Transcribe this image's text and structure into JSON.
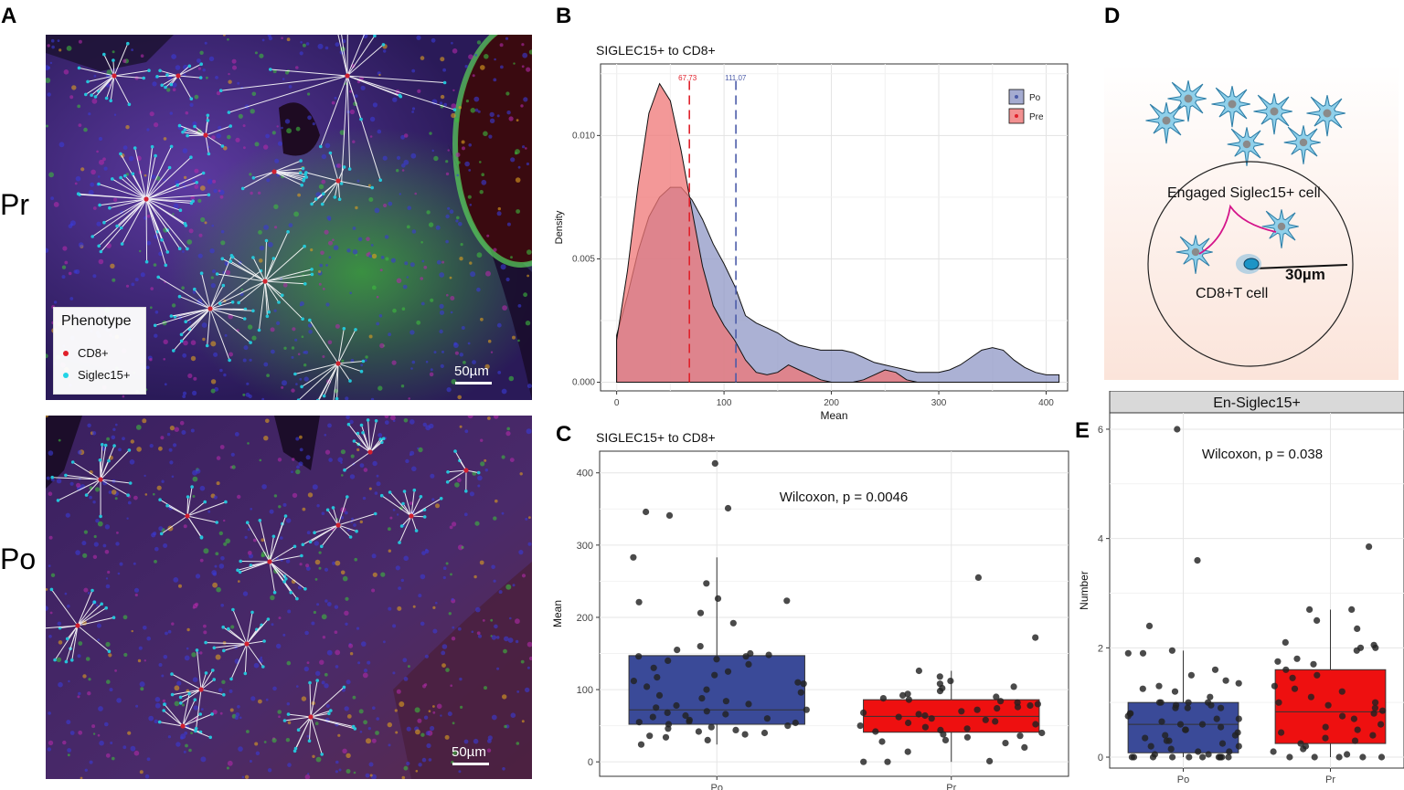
{
  "panels": {
    "A": "A",
    "B": "B",
    "C": "C",
    "D": "D",
    "E": "E"
  },
  "micrographs": {
    "row_labels": [
      "Pr",
      "Po"
    ],
    "legend_title": "Phenotype",
    "legend_items": [
      {
        "label": "CD8+",
        "color": "#e0202a"
      },
      {
        "label": "Siglec15+",
        "color": "#22d4e6"
      }
    ],
    "scale_label": "50µm"
  },
  "diagram": {
    "engaged_label": "Engaged Siglec15+ cell",
    "cd8_label": "CD8+T cell",
    "radius_label": "30µm"
  },
  "chart_data": [
    {
      "id": "B",
      "type": "area",
      "title": "SIGLEC15+ to CD8+",
      "xlabel": "Mean",
      "ylabel": "Density",
      "xlim": [
        -15,
        420
      ],
      "ylim": [
        -0.00035,
        0.0129
      ],
      "xticks": [
        0,
        100,
        200,
        300,
        400
      ],
      "yticks": [
        0.0,
        0.005,
        0.01
      ],
      "ytick_labels": [
        "0.000",
        "0.005",
        "0.010"
      ],
      "legend": [
        "Po",
        "Pre"
      ],
      "grid": true,
      "series": [
        {
          "name": "Po",
          "color": "#4b5ba8",
          "fill": "#8f97c6",
          "x": [
            0,
            10,
            20,
            30,
            40,
            50,
            60,
            70,
            80,
            90,
            100,
            110,
            120,
            130,
            140,
            150,
            160,
            170,
            180,
            190,
            200,
            210,
            220,
            230,
            240,
            250,
            260,
            270,
            280,
            290,
            300,
            310,
            320,
            330,
            340,
            350,
            360,
            370,
            380,
            390,
            400,
            412
          ],
          "y": [
            0.0019,
            0.0035,
            0.0053,
            0.0067,
            0.0075,
            0.0079,
            0.0079,
            0.0074,
            0.0066,
            0.0056,
            0.0048,
            0.0039,
            0.0027,
            0.0024,
            0.0022,
            0.002,
            0.0017,
            0.0015,
            0.0014,
            0.0013,
            0.0013,
            0.0013,
            0.0012,
            0.001,
            0.0008,
            0.0007,
            0.0006,
            0.0005,
            0.0004,
            0.0004,
            0.0004,
            0.0005,
            0.0007,
            0.001,
            0.0013,
            0.0014,
            0.0013,
            0.0009,
            0.0006,
            0.0004,
            0.0003,
            0.0003
          ]
        },
        {
          "name": "Pre",
          "color": "#e0202a",
          "fill": "#ef7575",
          "x": [
            0,
            10,
            20,
            30,
            40,
            50,
            60,
            70,
            80,
            90,
            100,
            110,
            120,
            130,
            140,
            150,
            160,
            170,
            180,
            190,
            200,
            210,
            220,
            230,
            240,
            250,
            260,
            270,
            280,
            285
          ],
          "y": [
            0.0017,
            0.0045,
            0.008,
            0.0109,
            0.0121,
            0.0114,
            0.0094,
            0.007,
            0.0047,
            0.0031,
            0.0023,
            0.0017,
            0.0009,
            0.0004,
            0.0003,
            0.0004,
            0.0007,
            0.0005,
            0.0003,
            0.0001,
            0.0,
            0.0,
            0.0,
            0.0001,
            0.0003,
            0.0005,
            0.0004,
            0.0001,
            0.0,
            0.0
          ]
        }
      ],
      "vlines": [
        {
          "series": "Pre",
          "x": 67.73,
          "label": "67.73",
          "color": "#e0202a"
        },
        {
          "series": "Po",
          "x": 111.07,
          "label": "111.07",
          "color": "#4b5ba8"
        }
      ]
    },
    {
      "id": "C",
      "type": "box",
      "title": "SIGLEC15+ to CD8+",
      "xlabel": "",
      "ylabel": "Mean",
      "categories": [
        "Po",
        "Pr"
      ],
      "ylim": [
        -20,
        430
      ],
      "yticks": [
        0,
        100,
        200,
        300,
        400
      ],
      "annotation": "Wilcoxon, p = 0.0046",
      "grid": true,
      "boxes": [
        {
          "name": "Po",
          "fill": "#3a4a98",
          "min": 24,
          "q1": 52,
          "median": 72,
          "q3": 147,
          "max": 283
        },
        {
          "name": "Pr",
          "fill": "#ee1010",
          "min": 0,
          "q1": 41,
          "median": 63,
          "q3": 86,
          "max": 126
        }
      ],
      "points": [
        {
          "group": "Po",
          "y": [
            413,
            351,
            346,
            341,
            247,
            226,
            221,
            223,
            192,
            160,
            155,
            148,
            146,
            146,
            142,
            140,
            135,
            130,
            125,
            120,
            117,
            112,
            110,
            108,
            104,
            100,
            96,
            92,
            88,
            84,
            80,
            78,
            75,
            72,
            70,
            68,
            66,
            64,
            62,
            60,
            58,
            56,
            55,
            54,
            52,
            50,
            48,
            46,
            44,
            42,
            40,
            38,
            36,
            34,
            30,
            24,
            283,
            206,
            150
          ]
        },
        {
          "group": "Pr",
          "y": [
            255,
            172,
            126,
            118,
            112,
            108,
            104,
            102,
            98,
            94,
            92,
            90,
            88,
            86,
            84,
            82,
            80,
            78,
            76,
            74,
            72,
            70,
            68,
            66,
            64,
            62,
            60,
            58,
            56,
            54,
            52,
            50,
            48,
            46,
            44,
            42,
            40,
            38,
            36,
            34,
            30,
            28,
            26,
            20,
            14,
            0,
            0,
            1
          ]
        }
      ]
    },
    {
      "id": "E",
      "type": "box",
      "title": "En-Siglec15+",
      "xlabel": "",
      "ylabel": "Number",
      "categories": [
        "Po",
        "Pr"
      ],
      "ylim": [
        -0.2,
        6.3
      ],
      "yticks": [
        0,
        2,
        4,
        6
      ],
      "annotation": "Wilcoxon, p = 0.038",
      "grid": true,
      "boxes": [
        {
          "name": "Po",
          "fill": "#3a4a98",
          "min": 0,
          "q1": 0.08,
          "median": 0.6,
          "q3": 1.0,
          "max": 1.95
        },
        {
          "name": "Pr",
          "fill": "#ee1010",
          "min": 0,
          "q1": 0.25,
          "median": 0.83,
          "q3": 1.6,
          "max": 2.7
        }
      ],
      "points": [
        {
          "group": "Po",
          "y": [
            6.0,
            3.6,
            2.4,
            1.95,
            1.9,
            1.9,
            1.6,
            1.5,
            1.4,
            1.35,
            1.3,
            1.25,
            1.2,
            1.1,
            1.0,
            1.0,
            1.0,
            1.0,
            0.95,
            0.95,
            0.9,
            0.9,
            0.9,
            0.8,
            0.8,
            0.75,
            0.7,
            0.7,
            0.65,
            0.6,
            0.6,
            0.55,
            0.5,
            0.5,
            0.45,
            0.4,
            0.4,
            0.35,
            0.3,
            0.3,
            0.25,
            0.2,
            0.2,
            0.15,
            0.1,
            0.1,
            0.05,
            0.05,
            0,
            0,
            0,
            0,
            0,
            0,
            0,
            0,
            0,
            0,
            0
          ]
        },
        {
          "group": "Pr",
          "y": [
            3.85,
            2.7,
            2.7,
            2.5,
            2.35,
            2.1,
            2.05,
            2.0,
            2.0,
            1.95,
            1.8,
            1.75,
            1.7,
            1.6,
            1.5,
            1.45,
            1.3,
            1.25,
            1.2,
            1.1,
            1.0,
            1.0,
            0.95,
            0.9,
            0.85,
            0.8,
            0.75,
            0.7,
            0.6,
            0.55,
            0.5,
            0.45,
            0.4,
            0.35,
            0.3,
            0.25,
            0.2,
            0.15,
            0.1,
            0.05,
            0,
            0,
            0,
            0,
            0
          ]
        }
      ]
    }
  ]
}
